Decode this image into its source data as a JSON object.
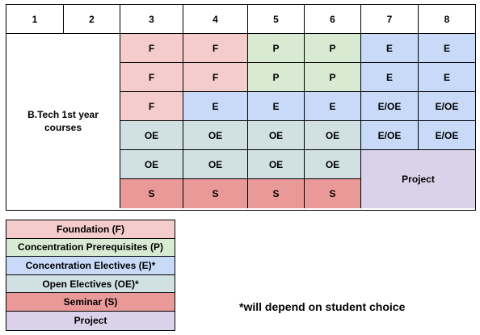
{
  "colors": {
    "foundation": "#f4cccc",
    "prerequisites": "#d9ead3",
    "electives": "#c9daf8",
    "open_electives": "#d0e0e3",
    "seminar": "#ea9999",
    "project": "#d9d2e9"
  },
  "header": [
    "1",
    "2",
    "3",
    "4",
    "5",
    "6",
    "7",
    "8"
  ],
  "btech_label": "B.Tech 1st year courses",
  "rows": [
    [
      "F",
      "F",
      "P",
      "P",
      "E",
      "E"
    ],
    [
      "F",
      "F",
      "P",
      "P",
      "E",
      "E"
    ],
    [
      "F",
      "E",
      "E",
      "E",
      "E/OE",
      "E/OE"
    ],
    [
      "OE",
      "OE",
      "OE",
      "OE",
      "E/OE",
      "E/OE"
    ],
    [
      "OE",
      "OE",
      "OE",
      "OE"
    ],
    [
      "S",
      "S",
      "S",
      "S"
    ]
  ],
  "project_label": "Project",
  "legend": [
    "Foundation (F)",
    "Concentration Prerequisites (P)",
    "Concentration Electives (E)*",
    "Open Electives (OE)*",
    "Seminar (S)",
    "Project"
  ],
  "note": "*will depend on student choice"
}
